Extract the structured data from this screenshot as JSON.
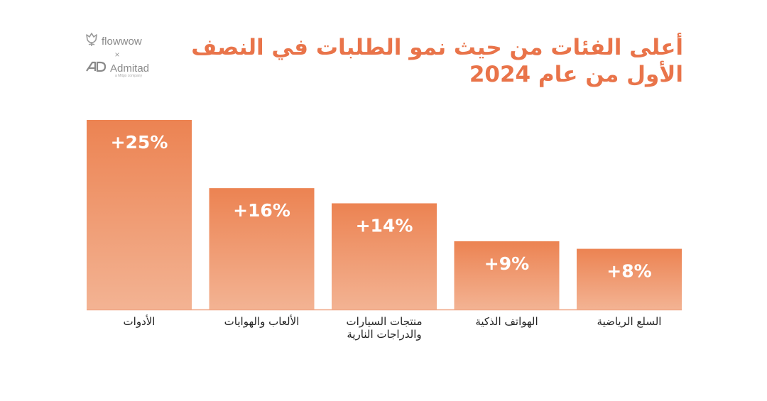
{
  "logo": {
    "brand_top": "flowwow",
    "separator": "×",
    "brand_bottom": "Admitad",
    "brand_bottom_sub": "a Mitgo company"
  },
  "colors": {
    "accent": "#e9744a",
    "bar_top": "#ec8352",
    "bar_bottom": "#f3b393",
    "axis": "#f0a887"
  },
  "chart_data": {
    "type": "bar",
    "title": "أعلى الفئات من حيث نمو الطلبات في النصف الأول من عام 2024",
    "categories": [
      "الأدوات",
      "الألعاب والهوايات",
      "منتجات السيارات والدراجات النارية",
      "الهواتف الذكية",
      "السلع الرياضية"
    ],
    "values": [
      25,
      16,
      14,
      9,
      8
    ],
    "data_labels": [
      "+25%",
      "+16%",
      "+14%",
      "+9%",
      "+8%"
    ],
    "unit": "%",
    "xlabel": "",
    "ylabel": "",
    "ylim": [
      0,
      25
    ],
    "grid": false,
    "legend": "none"
  }
}
